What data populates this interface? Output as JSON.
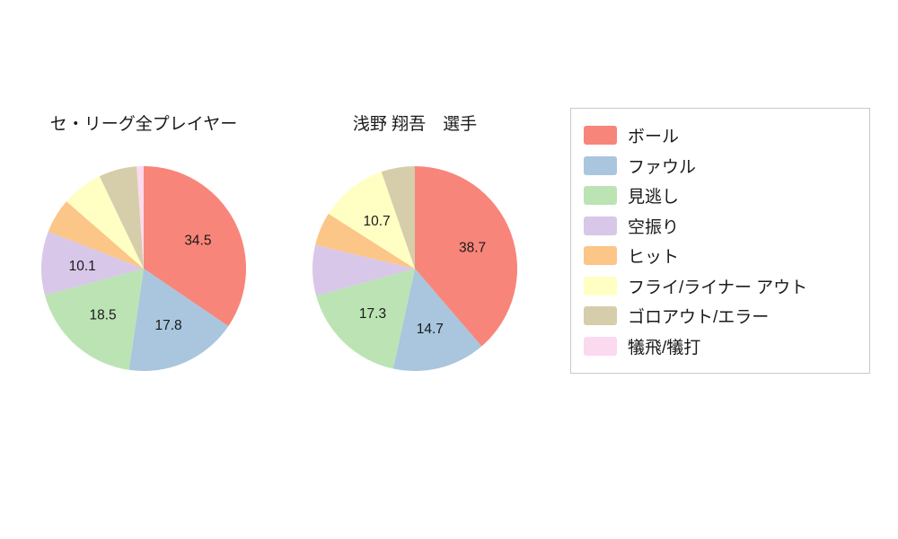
{
  "figure": {
    "background_color": "#ffffff",
    "text_color": "#1a1a1a"
  },
  "chart_data": [
    {
      "type": "pie",
      "title": "セ・リーグ全プレイヤー",
      "labels": [
        "ボール",
        "ファウル",
        "見逃し",
        "空振り",
        "ヒット",
        "フライ/ライナー アウト",
        "ゴロアウト/エラー",
        "犠飛/犠打"
      ],
      "values": [
        34.5,
        17.8,
        18.5,
        10.1,
        5.5,
        6.5,
        6.0,
        1.1
      ],
      "colors": [
        "#f8857a",
        "#a9c6de",
        "#bce3b4",
        "#d8c7e8",
        "#fbc687",
        "#ffffc4",
        "#d6cdaa",
        "#fbd9ee"
      ],
      "visible_value_labels": [
        "34.5",
        "17.8",
        "18.5",
        "10.1"
      ],
      "start": "12-oclock",
      "direction": "clockwise",
      "value_label_threshold": 10,
      "legend_position": "right-box"
    },
    {
      "type": "pie",
      "title": "浅野 翔吾　選手",
      "labels": [
        "ボール",
        "ファウル",
        "見逃し",
        "空振り",
        "ヒット",
        "フライ/ライナー アウト",
        "ゴロアウト/エラー",
        "犠飛/犠打"
      ],
      "values": [
        38.7,
        14.7,
        17.3,
        8.0,
        5.3,
        10.7,
        5.3,
        0
      ],
      "colors": [
        "#f8857a",
        "#a9c6de",
        "#bce3b4",
        "#d8c7e8",
        "#fbc687",
        "#ffffc4",
        "#d6cdaa",
        "#fbd9ee"
      ],
      "visible_value_labels": [
        "38.7",
        "14.7",
        "17.3",
        "10.7"
      ],
      "start": "12-oclock",
      "direction": "clockwise",
      "value_label_threshold": 10,
      "legend_position": "right-box"
    }
  ],
  "legend": {
    "items": [
      {
        "label": "ボール",
        "color": "#f8857a"
      },
      {
        "label": "ファウル",
        "color": "#a9c6de"
      },
      {
        "label": "見逃し",
        "color": "#bce3b4"
      },
      {
        "label": "空振り",
        "color": "#d8c7e8"
      },
      {
        "label": "ヒット",
        "color": "#fbc687"
      },
      {
        "label": "フライ/ライナー アウト",
        "color": "#ffffc4"
      },
      {
        "label": "ゴロアウト/エラー",
        "color": "#d6cdaa"
      },
      {
        "label": "犠飛/犠打",
        "color": "#fbd9ee"
      }
    ]
  }
}
